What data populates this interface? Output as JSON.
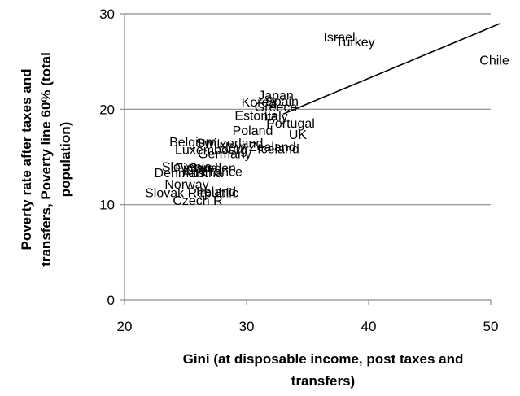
{
  "chart_data": {
    "type": "scatter",
    "xlabel_lines": [
      "Gini (at disposable income, post taxes and",
      "transfers)"
    ],
    "ylabel_lines": [
      "Poverty rate after taxes and",
      "transfers, Poverty line 60% (total",
      "population)"
    ],
    "xlim": [
      20,
      50
    ],
    "ylim": [
      0,
      30
    ],
    "xticks": [
      20,
      30,
      40,
      50
    ],
    "yticks": [
      0,
      10,
      20,
      30
    ],
    "grid": "horizontal",
    "points": [
      {
        "label": "Israel",
        "x": 37.6,
        "y": 27.6
      },
      {
        "label": "Turkey",
        "x": 38.9,
        "y": 27.1
      },
      {
        "label": "Chile",
        "x": 50.3,
        "y": 25.2
      },
      {
        "label": "Japan",
        "x": 32.4,
        "y": 21.5
      },
      {
        "label": "Spain",
        "x": 32.9,
        "y": 20.9
      },
      {
        "label": "Korea",
        "x": 31.0,
        "y": 20.8
      },
      {
        "label": "Greece",
        "x": 32.4,
        "y": 20.3
      },
      {
        "label": "Estonia",
        "x": 30.8,
        "y": 19.4
      },
      {
        "label": "Italy",
        "x": 32.4,
        "y": 19.3
      },
      {
        "label": "Portugal",
        "x": 33.6,
        "y": 18.6
      },
      {
        "label": "Poland",
        "x": 30.5,
        "y": 17.8
      },
      {
        "label": "UK",
        "x": 34.2,
        "y": 17.4
      },
      {
        "label": "Belgium",
        "x": 25.6,
        "y": 16.6
      },
      {
        "label": "Switzerland",
        "x": 28.6,
        "y": 16.5
      },
      {
        "label": "New Zealand",
        "x": 30.9,
        "y": 16.1
      },
      {
        "label": "Luxembourg",
        "x": 27.1,
        "y": 15.8
      },
      {
        "label": "Iceland",
        "x": 32.6,
        "y": 15.9
      },
      {
        "label": "Germany",
        "x": 28.2,
        "y": 15.4
      },
      {
        "label": "Slovenia",
        "x": 25.1,
        "y": 14.0
      },
      {
        "label": "Finland",
        "x": 25.9,
        "y": 13.9
      },
      {
        "label": "Sweden",
        "x": 27.2,
        "y": 13.9
      },
      {
        "label": "Denmark",
        "x": 24.6,
        "y": 13.4
      },
      {
        "label": "Austria",
        "x": 26.4,
        "y": 13.4
      },
      {
        "label": "France",
        "x": 28.0,
        "y": 13.5
      },
      {
        "label": "Norway",
        "x": 25.1,
        "y": 12.2
      },
      {
        "label": "Slovak Republic",
        "x": 25.5,
        "y": 11.3
      },
      {
        "label": "Ireland",
        "x": 27.5,
        "y": 11.4
      },
      {
        "label": "Czech R",
        "x": 26.0,
        "y": 10.5
      }
    ],
    "trendline": {
      "x": [
        33.0,
        50.8
      ],
      "y": [
        19.5,
        29.0
      ]
    }
  }
}
